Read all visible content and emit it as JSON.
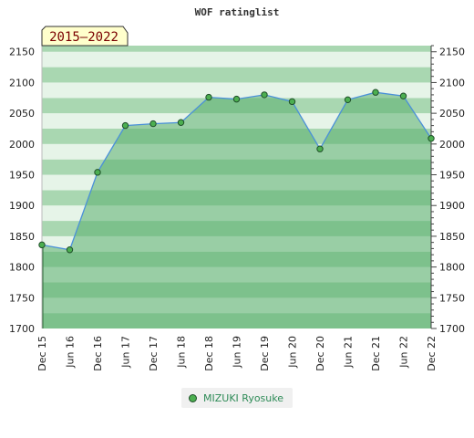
{
  "chart_data": {
    "type": "area",
    "title": "WOF ratinglist",
    "badge": "2015–2022",
    "categories": [
      "Dec 15",
      "Jun 16",
      "Dec 16",
      "Jun 17",
      "Dec 17",
      "Jun 18",
      "Dec 18",
      "Jun 19",
      "Dec 19",
      "Jun 20",
      "Dec 20",
      "Jun 21",
      "Dec 21",
      "Jun 22",
      "Dec 22"
    ],
    "series": [
      {
        "name": "MIZUKI Ryosuke",
        "values": [
          1836,
          1828,
          1954,
          2030,
          2033,
          2035,
          2076,
          2073,
          2080,
          2069,
          1992,
          2072,
          2084,
          2078,
          2009
        ]
      }
    ],
    "ylim": [
      1700,
      2160
    ],
    "yticks": [
      1700,
      1750,
      1800,
      1850,
      1900,
      1950,
      2000,
      2050,
      2100,
      2150
    ],
    "ytick_labels": [
      "1700",
      "1750",
      "1800",
      "1850",
      "1900",
      "1950",
      "2000",
      "2050",
      "2100",
      "2150"
    ],
    "legend_position": "bottom-center",
    "colors": {
      "line": "#4a90d9",
      "marker_fill": "#4caf50",
      "marker_stroke": "#1f4f2a",
      "area_fill": "#5aae6e",
      "band_dark": "#a9d7b1",
      "band_light": "#e6f4e8",
      "badge_fill": "#ffffcc",
      "badge_text": "#7a0000"
    }
  }
}
